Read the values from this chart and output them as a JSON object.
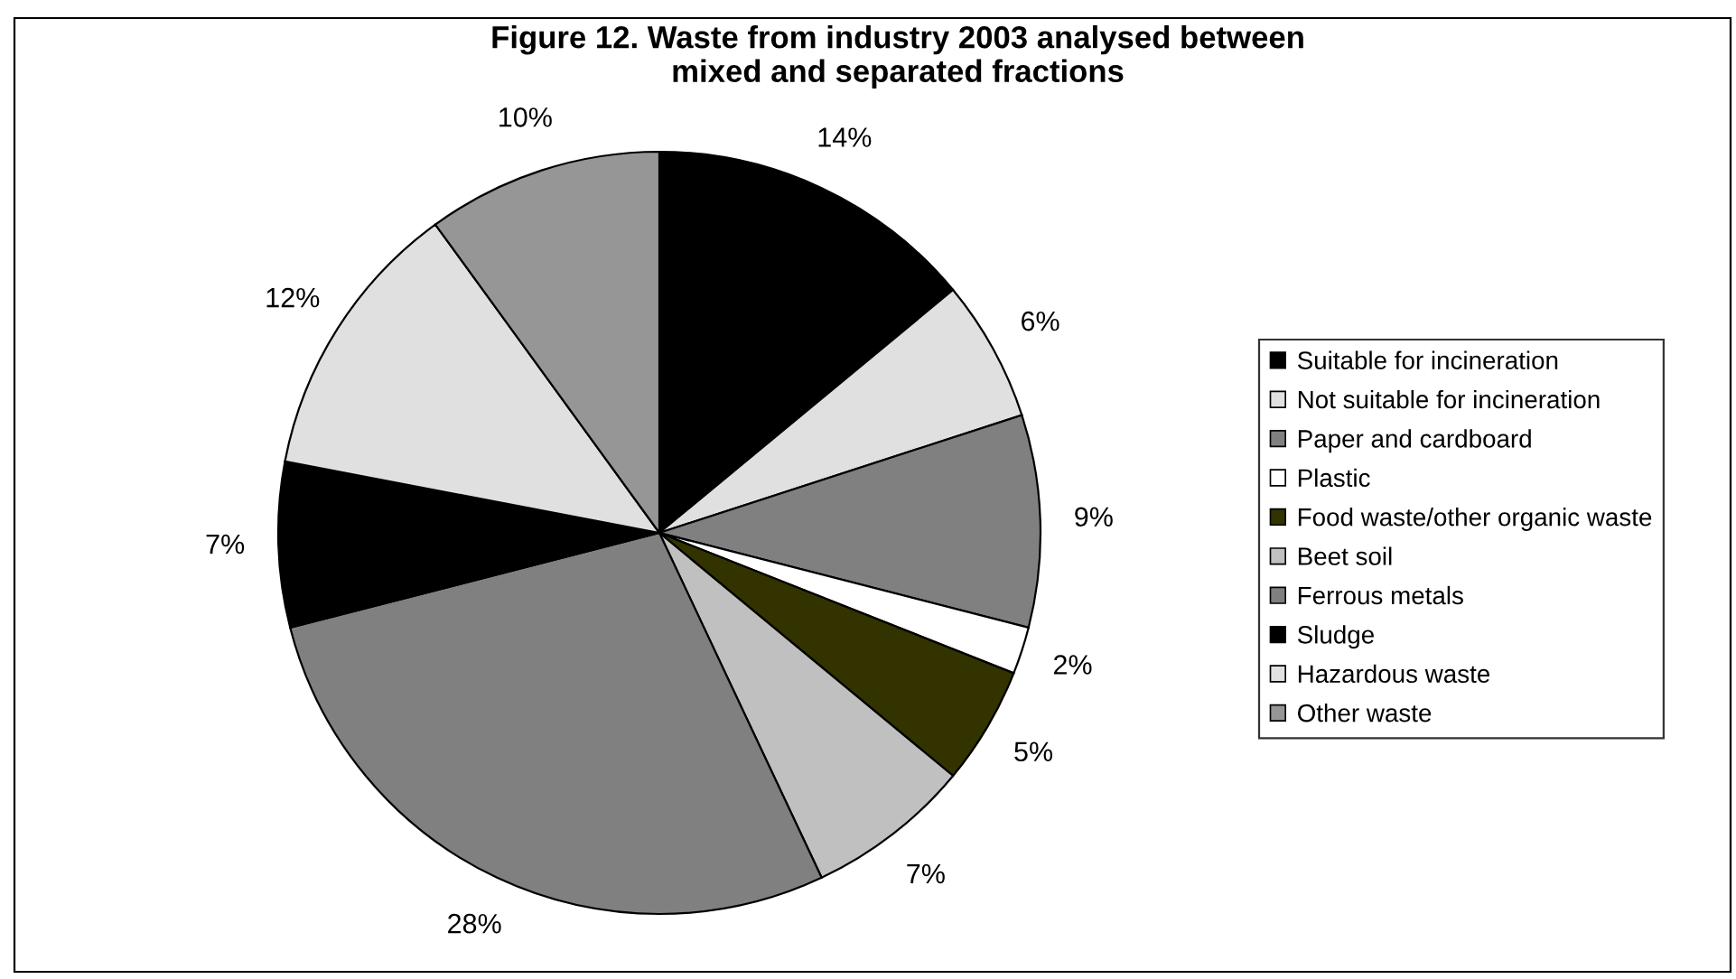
{
  "chart_data": {
    "type": "pie",
    "title": "Figure 12. Waste from industry 2003 analysed between\nmixed and separated fractions",
    "categories": [
      "Suitable for incineration",
      "Not suitable for incineration",
      "Paper and cardboard",
      "Plastic",
      "Food waste/other organic waste",
      "Beet soil",
      "Ferrous metals",
      "Sludge",
      "Hazardous waste",
      "Other waste"
    ],
    "values": [
      14,
      6,
      9,
      2,
      5,
      7,
      28,
      7,
      12,
      10
    ],
    "value_labels": [
      "14%",
      "6%",
      "9%",
      "2%",
      "5%",
      "7%",
      "28%",
      "7%",
      "12%",
      "10%"
    ],
    "colors": [
      "#000000",
      "#e0e0e0",
      "#808080",
      "#ffffff",
      "#333300",
      "#c0c0c0",
      "#808080",
      "#000000",
      "#e0e0e0",
      "#969696"
    ],
    "legend": "right"
  }
}
